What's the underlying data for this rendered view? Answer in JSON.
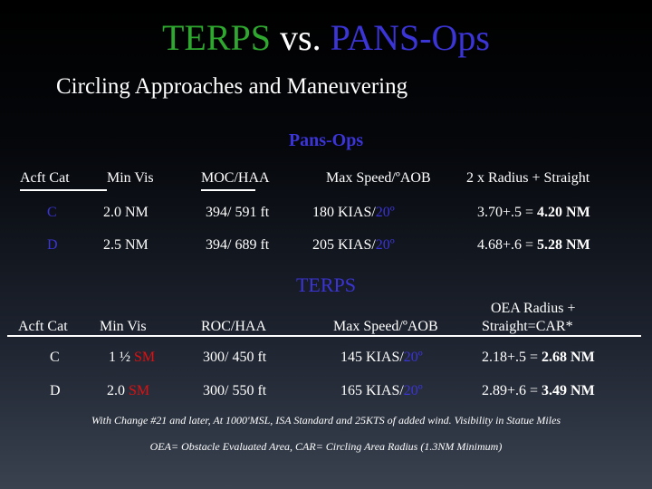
{
  "title": {
    "terps": "TERPS",
    "vs": " vs. ",
    "pans": "PANS-Ops"
  },
  "subtitle": "Circling Approaches and Maneuvering",
  "pans_ops": {
    "heading": "Pans-Ops",
    "headers": [
      "Acft Cat",
      "Min Vis",
      "MOC/HAA",
      "Max Speed/ºAOB",
      "2 x Radius + Straight"
    ],
    "rows": [
      {
        "cat": "C",
        "vis": "2.0 NM",
        "moc": "394/ 591 ft",
        "speed": "180 KIAS/",
        "aob": "20º",
        "radius_pre": "3.70+.5 = ",
        "radius_total": "4.20 NM"
      },
      {
        "cat": "D",
        "vis": "2.5 NM",
        "moc": "394/ 689 ft",
        "speed": "205 KIAS/",
        "aob": "20º",
        "radius_pre": "4.68+.6 = ",
        "radius_total": "5.28 NM"
      }
    ]
  },
  "terps": {
    "heading": "TERPS",
    "headers": [
      "Acft Cat",
      "Min Vis",
      "ROC/HAA",
      "Max Speed/ºAOB",
      "OEA Radius +",
      "Straight=CAR*"
    ],
    "rows": [
      {
        "cat": "C",
        "vis_num": "1 ½ ",
        "vis_unit": "SM",
        "roc": "300/ 450 ft",
        "speed": "145 KIAS/",
        "aob": "20º",
        "radius_pre": "2.18+.5 = ",
        "radius_total": "2.68 NM"
      },
      {
        "cat": "D",
        "vis_num": "2.0 ",
        "vis_unit": "SM",
        "roc": "300/ 550 ft",
        "speed": "165 KIAS/",
        "aob": "20º",
        "radius_pre": "2.89+.6 = ",
        "radius_total": "3.49 NM"
      }
    ]
  },
  "notes": [
    "With Change #21 and later, At 1000'MSL, ISA Standard and 25KTS of added wind. Visibility in Statue Miles",
    "OEA= Obstacle Evaluated Area, CAR= Circling Area Radius (1.3NM Minimum)"
  ],
  "colors": {
    "green": "#2fa82f",
    "blue": "#3b34d6",
    "red": "#e01010"
  }
}
